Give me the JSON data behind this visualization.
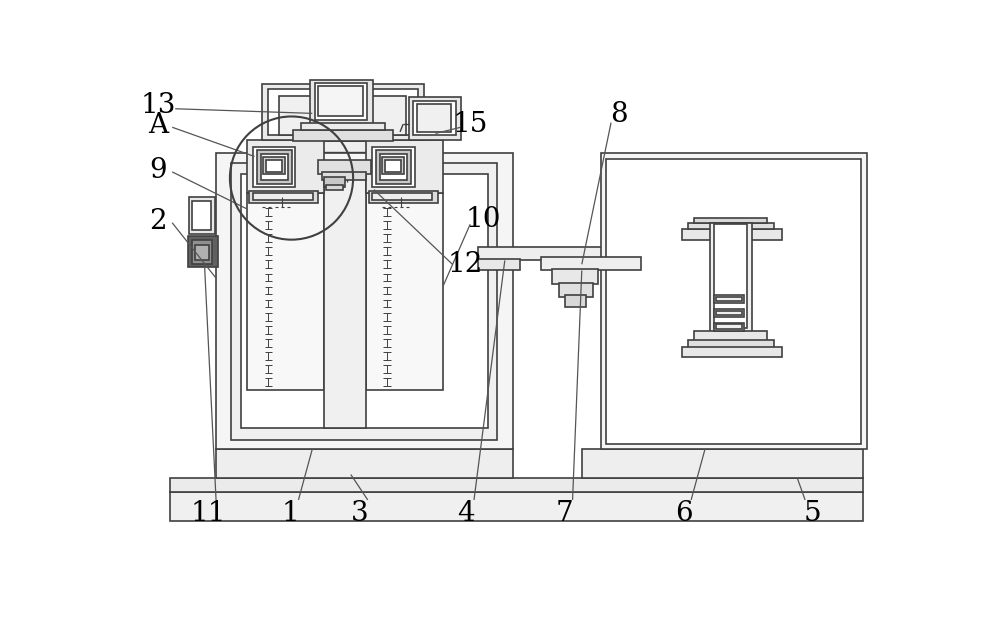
{
  "bg": "#ffffff",
  "lc": "#404040",
  "lw": 1.2,
  "fs": 20,
  "fig_w": 10.0,
  "fig_h": 6.24,
  "dpi": 100
}
